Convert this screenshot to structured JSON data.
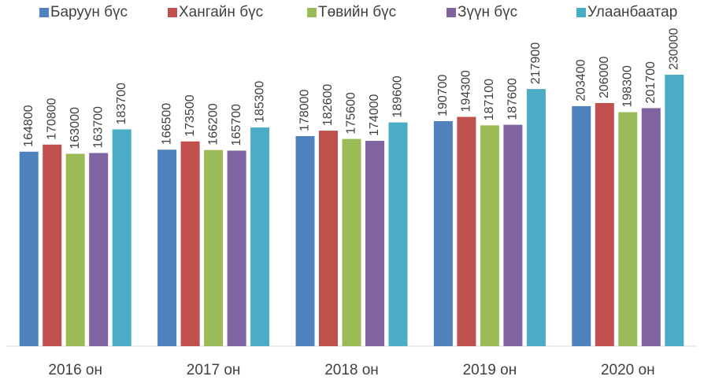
{
  "chart_data": {
    "type": "bar",
    "categories": [
      "2016 он",
      "2017 он",
      "2018 он",
      "2019 он",
      "2020 он"
    ],
    "series": [
      {
        "name": "Баруун бүс",
        "color": "#4f81bd",
        "values": [
          164800,
          166500,
          178000,
          190700,
          203400
        ]
      },
      {
        "name": "Хангайн бүс",
        "color": "#c0504d",
        "values": [
          170800,
          173500,
          182600,
          194300,
          206000
        ]
      },
      {
        "name": "Төвийн бүс",
        "color": "#9bbb59",
        "values": [
          163000,
          166200,
          175600,
          187100,
          198300
        ]
      },
      {
        "name": "Зүүн бүс",
        "color": "#8064a2",
        "values": [
          163700,
          165700,
          174000,
          187600,
          201700
        ]
      },
      {
        "name": "Улаанбаатар",
        "color": "#4bacc6",
        "values": [
          183700,
          185300,
          189600,
          217900,
          230000
        ]
      }
    ],
    "ylim": [
      0,
      270000
    ],
    "legend": "top"
  }
}
